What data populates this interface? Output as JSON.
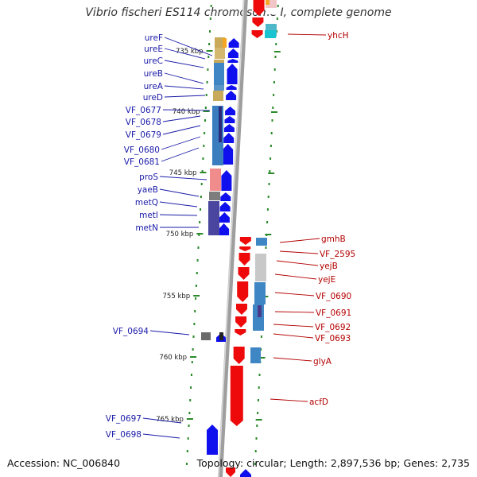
{
  "title": "Vibrio fischeri ES114 chromosome I, complete genome",
  "accession_text": "Accession: NC_006840",
  "topology_text": "Topology: circular; Length: 2,897,536 bp; Genes: 2,735",
  "colors": {
    "forward_gene": "#1010ee",
    "reverse_gene": "#ee0a0a",
    "forward_label": "#1a1aa8",
    "reverse_label": "#b30000",
    "tick": "#2a8a2a",
    "backbone": "#9e9e9e"
  },
  "scale_ticks": [
    "735 kbp",
    "740 kbp",
    "745 kbp",
    "750 kbp",
    "755 kbp",
    "760 kbp",
    "765 kbp"
  ],
  "forward_genes": [
    "ureF",
    "ureE",
    "ureC",
    "ureB",
    "ureA",
    "ureD",
    "VF_0677",
    "VF_0678",
    "VF_0679",
    "VF_0680",
    "VF_0681",
    "proS",
    "yaeB",
    "metQ",
    "metI",
    "metN",
    "VF_0694",
    "VF_0697",
    "VF_0698"
  ],
  "reverse_genes": [
    "yhcH",
    "gmhB",
    "VF_2595",
    "yejB",
    "yejE",
    "VF_0690",
    "VF_0691",
    "VF_0692",
    "VF_0693",
    "glyA",
    "acfD"
  ]
}
